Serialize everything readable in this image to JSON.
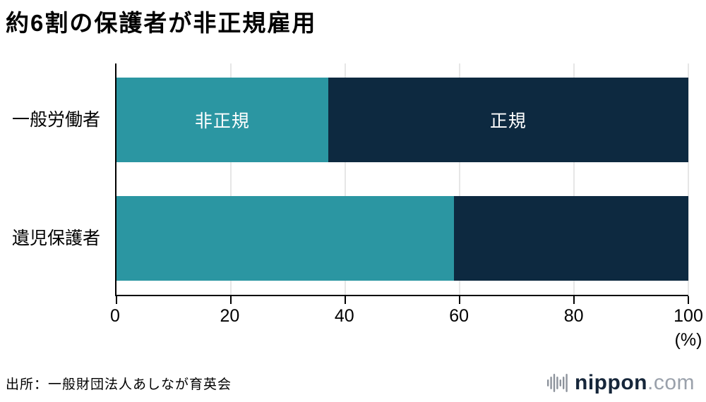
{
  "title": "約6割の保護者が非正規雇用",
  "source": "出所：一般財団法人あしなが育英会",
  "logo": {
    "brand": "nippon",
    "suffix": ".com",
    "icon": "soundwave-bars-icon"
  },
  "chart_data": {
    "type": "bar",
    "orientation": "horizontal",
    "stacked": true,
    "title": "約6割の保護者が非正規雇用",
    "categories": [
      "一般労働者",
      "遺児保護者"
    ],
    "series": [
      {
        "name": "非正規",
        "values": [
          37,
          59
        ],
        "color": "#2B96A2"
      },
      {
        "name": "正規",
        "values": [
          63,
          41
        ],
        "color": "#0D2940"
      }
    ],
    "segment_labels": [
      {
        "bar": 0,
        "series": 0,
        "text": "非正規"
      },
      {
        "bar": 0,
        "series": 1,
        "text": "正規"
      }
    ],
    "xlim": [
      0,
      100
    ],
    "xticks": [
      0,
      20,
      40,
      60,
      80,
      100
    ],
    "x_unit": "(%)",
    "grid": true,
    "gridline_color": "#cccccc",
    "legend_position": "none"
  }
}
